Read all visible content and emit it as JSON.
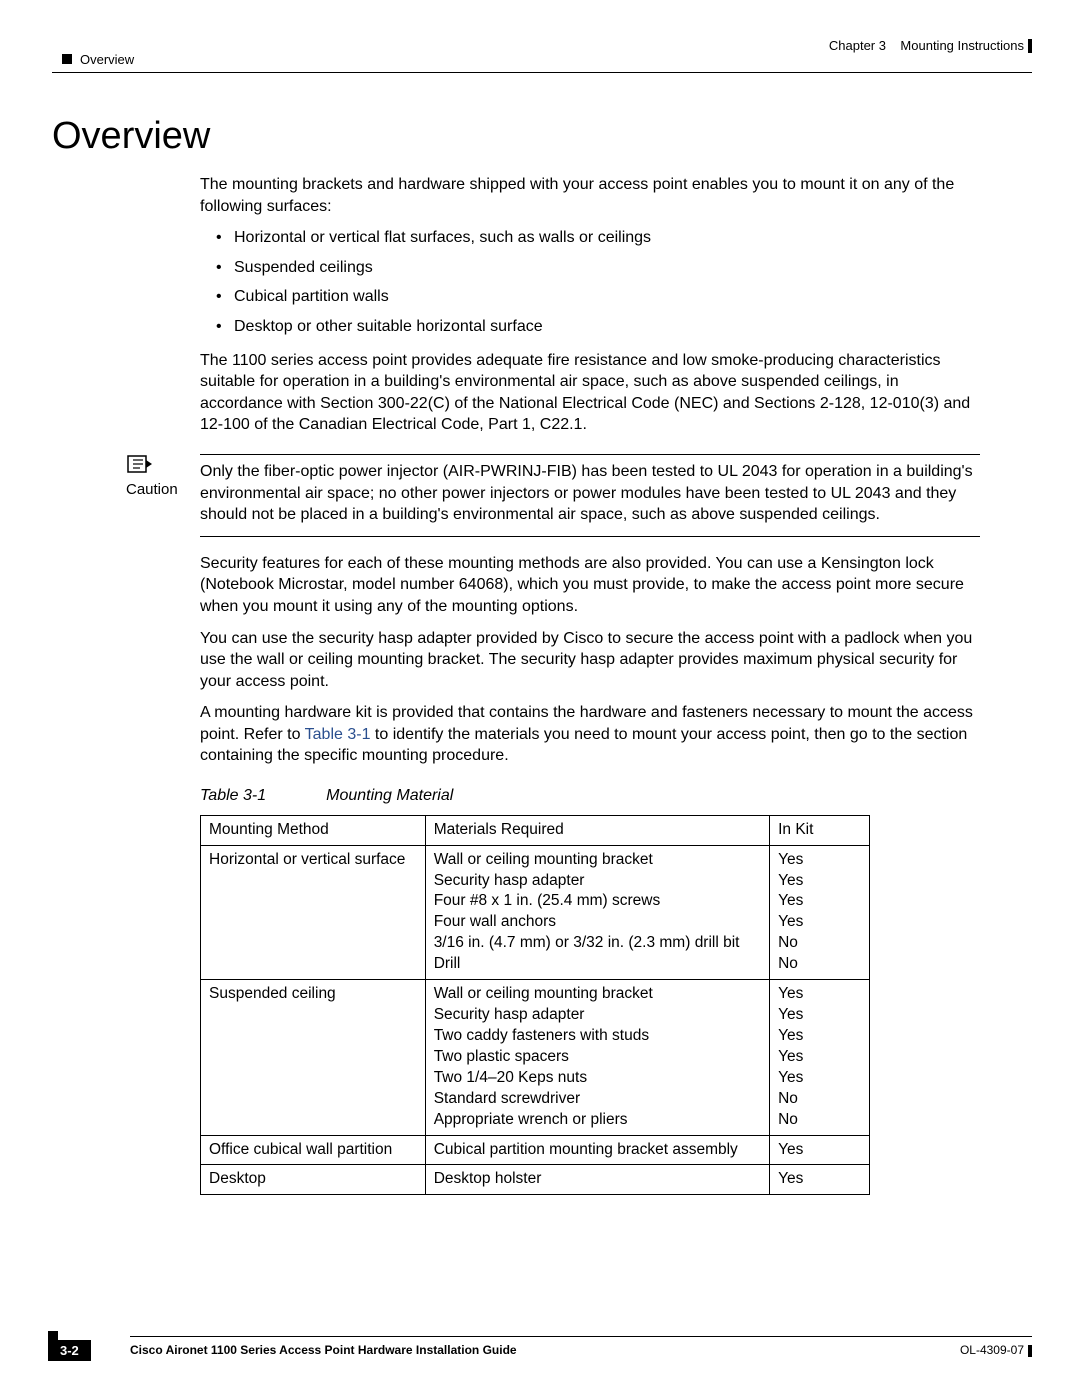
{
  "header": {
    "chapter": "Chapter 3",
    "chapter_title": "Mounting Instructions",
    "section": "Overview"
  },
  "title": "Overview",
  "intro": "The mounting brackets and hardware shipped with your access point enables you to mount it on any of the following surfaces:",
  "bullets": [
    "Horizontal or vertical flat surfaces, such as walls or ceilings",
    "Suspended ceilings",
    "Cubical partition walls",
    "Desktop or other suitable horizontal surface"
  ],
  "fire_para": "The 1100 series access point provides adequate fire resistance and low smoke-producing characteristics suitable for operation in a building's environmental air space, such as above suspended ceilings, in accordance with Section 300-22(C) of the National Electrical Code (NEC) and Sections 2-128, 12-010(3) and 12-100 of the Canadian Electrical Code, Part 1, C22.1.",
  "caution": {
    "label": "Caution",
    "text": "Only the fiber-optic power injector (AIR-PWRINJ-FIB) has been tested to UL 2043 for operation in a building's environmental air space; no other power injectors or power modules have been tested to UL 2043 and they should not be placed in a building's environmental air space, such as above suspended ceilings."
  },
  "security_para": "Security features for each of these mounting methods are also provided. You can use a Kensington lock (Notebook Microstar, model number 64068), which you must provide, to make the access point more secure when you mount it using any of the mounting options.",
  "hasp_para": "You can use the security hasp adapter provided by Cisco to secure the access point with a padlock when you use the wall or ceiling mounting bracket. The security hasp adapter provides maximum physical security for your access point.",
  "kit_para_pre": "A mounting hardware kit is provided that contains the hardware and fasteners necessary to mount the access point. Refer to ",
  "kit_para_ref": "Table 3-1",
  "kit_para_post": " to identify the materials you need to mount your access point, then go to the section containing the specific mounting procedure.",
  "table": {
    "label": "Table 3-1",
    "title": "Mounting Material",
    "headers": [
      "Mounting Method",
      "Materials Required",
      "In Kit"
    ],
    "rows": [
      {
        "method": "Horizontal or vertical surface",
        "materials": [
          "Wall or ceiling mounting bracket",
          "Security hasp adapter",
          "Four #8 x 1 in. (25.4 mm) screws",
          "Four wall anchors",
          "3/16 in. (4.7 mm) or 3/32 in. (2.3 mm) drill bit",
          "Drill"
        ],
        "inkit": [
          "Yes",
          "Yes",
          "Yes",
          "Yes",
          "No",
          "No"
        ]
      },
      {
        "method": "Suspended ceiling",
        "materials": [
          "Wall or ceiling mounting bracket",
          "Security hasp adapter",
          "Two caddy fasteners with studs",
          "Two plastic spacers",
          "Two 1/4–20 Keps nuts",
          "Standard screwdriver",
          "Appropriate wrench or pliers"
        ],
        "inkit": [
          "Yes",
          "Yes",
          "Yes",
          "Yes",
          "Yes",
          "No",
          "No"
        ]
      },
      {
        "method": "Office cubical wall partition",
        "materials": [
          "Cubical partition mounting bracket assembly"
        ],
        "inkit": [
          "Yes"
        ]
      },
      {
        "method": "Desktop",
        "materials": [
          "Desktop holster"
        ],
        "inkit": [
          "Yes"
        ]
      }
    ]
  },
  "footer": {
    "guide": "Cisco Aironet 1100 Series Access Point Hardware Installation Guide",
    "page": "3-2",
    "doc": "OL-4309-07"
  }
}
